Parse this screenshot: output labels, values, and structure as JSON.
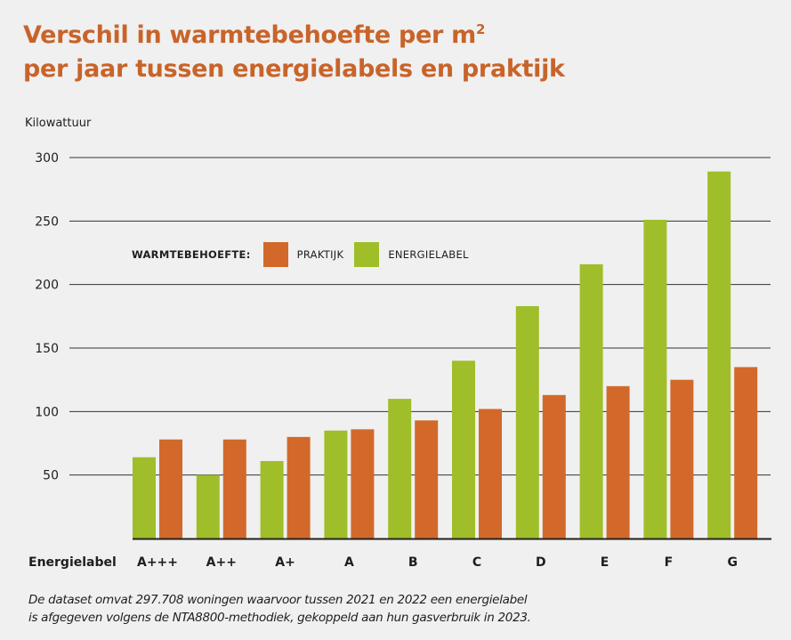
{
  "title_line1": "Verschil in warmtebehoefte per m",
  "title_sup": "2",
  "title_line2": "per jaar tussen energielabels en praktijk",
  "unit_label": "Kilowattuur",
  "legend": {
    "title": "WARMTEBEHOEFTE:",
    "items": [
      {
        "label": "PRAKTIJK",
        "color": "#d2692a"
      },
      {
        "label": "ENERGIELABEL",
        "color": "#9fbe2a"
      }
    ]
  },
  "footnote_line1": "De dataset omvat 297.708 woningen waarvoor tussen 2021 en 2022 een energielabel",
  "footnote_line2": "is afgegeven volgens de NTA8800-methodiek, gekoppeld aan hun gasverbruik in 2023.",
  "chart_data": {
    "type": "bar",
    "title": "Verschil in warmtebehoefte per m2 per jaar tussen energielabels en praktijk",
    "xlabel": "Energielabel",
    "ylabel": "Kilowattuur",
    "ylim": [
      0,
      300
    ],
    "yticks": [
      50,
      100,
      150,
      200,
      250,
      300
    ],
    "grid": true,
    "legend_position": "top-left",
    "categories": [
      "A+++",
      "A++",
      "A+",
      "A",
      "B",
      "C",
      "D",
      "E",
      "F",
      "G"
    ],
    "series": [
      {
        "name": "ENERGIELABEL",
        "color": "#9fbe2a",
        "values": [
          64,
          50,
          61,
          85,
          110,
          140,
          183,
          216,
          251,
          289
        ]
      },
      {
        "name": "PRAKTIJK",
        "color": "#d2692a",
        "values": [
          78,
          78,
          80,
          86,
          93,
          102,
          113,
          120,
          125,
          135
        ]
      }
    ]
  }
}
